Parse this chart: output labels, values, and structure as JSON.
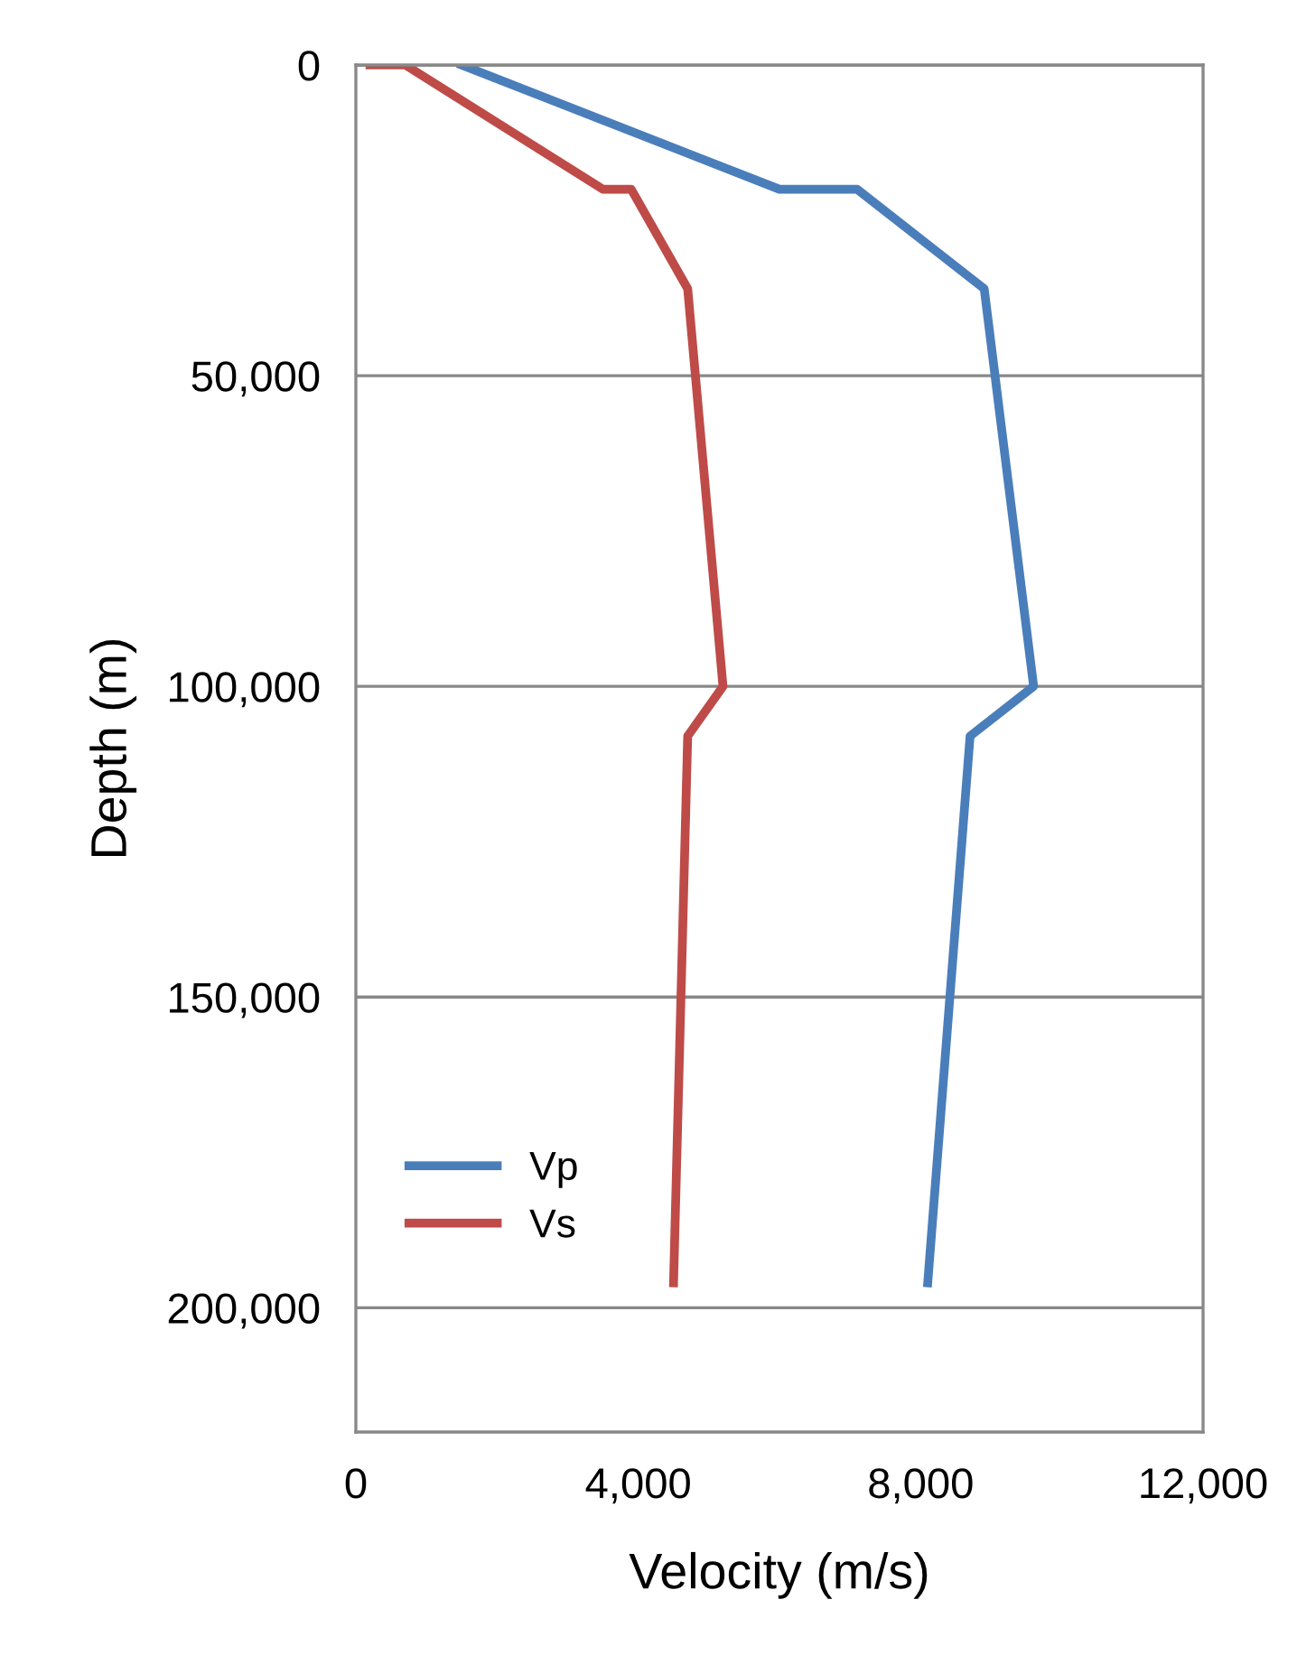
{
  "chart_data": {
    "type": "line",
    "xlabel": "Velocity (m/s)",
    "ylabel": "Depth (m)",
    "series": [
      {
        "name": "Vp",
        "color": "#4a7ebb",
        "x": [
          1500,
          6000,
          7100,
          8900,
          9600,
          8700,
          8100
        ],
        "values": [
          0,
          20000,
          20000,
          36000,
          100000,
          108000,
          196000
        ]
      },
      {
        "name": "Vs",
        "color": "#be4b48",
        "x": [
          200,
          700,
          3500,
          3900,
          4700,
          5200,
          4700,
          4500
        ],
        "values": [
          0,
          0,
          20000,
          20000,
          36000,
          100000,
          108000,
          196000
        ]
      }
    ],
    "xlim": [
      0,
      12000
    ],
    "xticks": [
      {
        "value": 0,
        "label": "0"
      },
      {
        "value": 4000,
        "label": "4,000"
      },
      {
        "value": 8000,
        "label": "8,000"
      },
      {
        "value": 12000,
        "label": "12,000"
      }
    ],
    "ylim": [
      220000,
      0
    ],
    "yticks": [
      {
        "value": 0,
        "label": "0"
      },
      {
        "value": 50000,
        "label": "50,000"
      },
      {
        "value": 100000,
        "label": "100,000"
      },
      {
        "value": 150000,
        "label": "150,000"
      },
      {
        "value": 200000,
        "label": "200,000"
      }
    ],
    "grid": "y",
    "legend": "bottom left",
    "marker": "none",
    "line_style": "solid"
  }
}
